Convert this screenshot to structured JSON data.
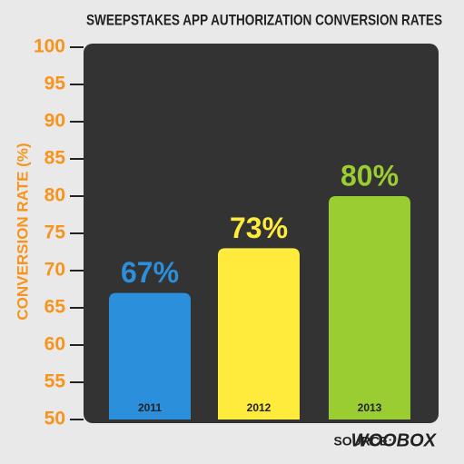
{
  "chart_data": {
    "type": "bar",
    "title": "SWEEPSTAKES APP AUTHORIZATION CONVERSION RATES",
    "y_label": "CONVERSION RATE (%)",
    "categories": [
      "2011",
      "2012",
      "2013"
    ],
    "values": [
      67,
      73,
      80
    ],
    "value_labels": [
      "67%",
      "73%",
      "80%"
    ],
    "colors": [
      "#2b8fdc",
      "#ffeb3b",
      "#9acd32"
    ],
    "ylim": [
      50,
      100
    ],
    "yticks": [
      50,
      55,
      60,
      65,
      70,
      75,
      80,
      85,
      90,
      95,
      100
    ],
    "source_label": "SOURCE:",
    "source_name": "WOOBOX"
  }
}
